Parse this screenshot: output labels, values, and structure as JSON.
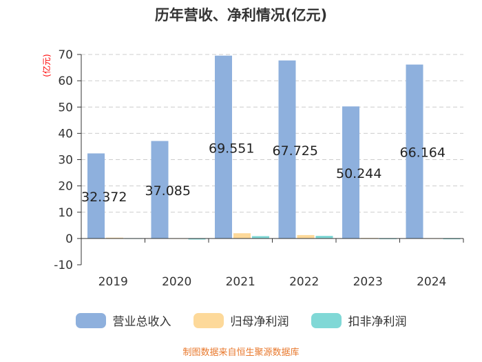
{
  "chart_data": {
    "type": "bar",
    "title": "历年营收、净利情况(亿元)",
    "ylabel": "(亿元)",
    "xlabel": "",
    "categories": [
      "2019",
      "2020",
      "2021",
      "2022",
      "2023",
      "2024"
    ],
    "ylim": [
      -10,
      70
    ],
    "yticks": [
      -10,
      0,
      10,
      20,
      30,
      40,
      50,
      60,
      70
    ],
    "grid": true,
    "legend_position": "bottom",
    "series": [
      {
        "name": "营业总收入",
        "color": "#8eb0dd",
        "values": [
          32.372,
          37.085,
          69.551,
          67.725,
          50.244,
          66.164
        ],
        "labels": [
          "32.372",
          "37.085",
          "69.551",
          "67.725",
          "50.244",
          "66.164"
        ]
      },
      {
        "name": "归母净利润",
        "color": "#fdd99a",
        "values": [
          0.3,
          0.1,
          2.0,
          1.3,
          0.2,
          0.1
        ]
      },
      {
        "name": "扣非净利润",
        "color": "#80d8d6",
        "values": [
          0.1,
          -0.4,
          0.9,
          1.0,
          -0.1,
          -0.3
        ]
      }
    ]
  },
  "source_note": {
    "text": "制图数据来自恒生聚源数据库",
    "color": "#e8782c"
  },
  "colors": {
    "axis": "#333333",
    "grid": "#cccccc",
    "ylabel": "#ff0000",
    "text": "#333333"
  }
}
